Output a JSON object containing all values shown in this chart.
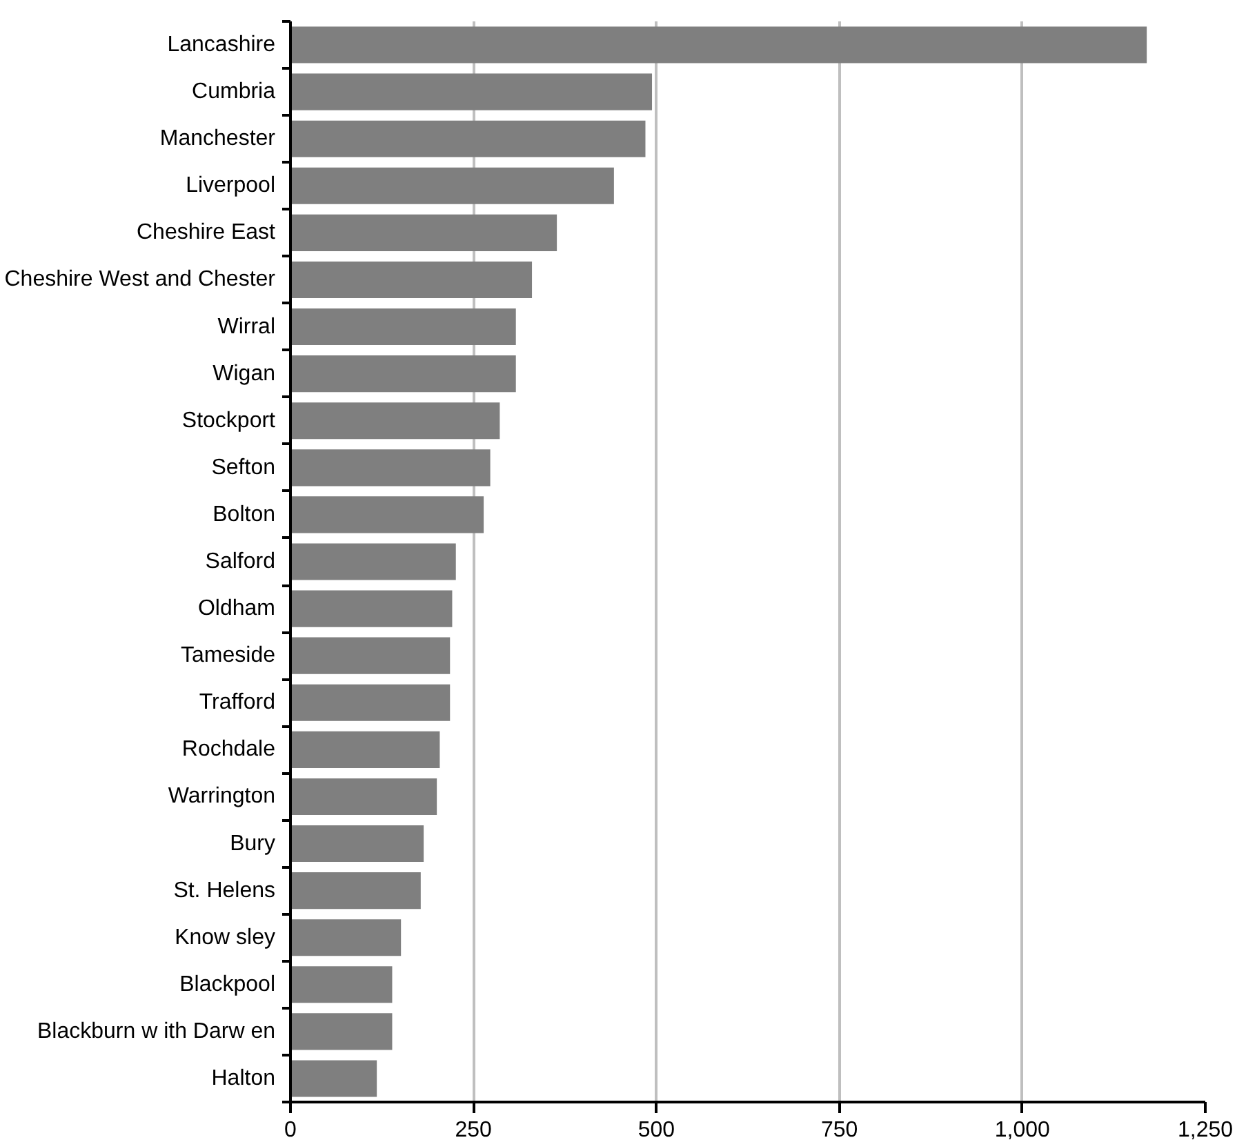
{
  "chart_data": {
    "type": "bar",
    "orientation": "horizontal",
    "categories": [
      "Lancashire",
      "Cumbria",
      "Manchester",
      "Liverpool",
      "Cheshire East",
      "Cheshire West and Chester",
      "Wirral",
      "Wigan",
      "Stockport",
      "Sefton",
      "Bolton",
      "Salford",
      "Oldham",
      "Tameside",
      "Trafford",
      "Rochdale",
      "Warrington",
      "Bury",
      "St. Helens",
      "Know sley",
      "Blackpool",
      "Blackburn w ith Darw en",
      "Halton"
    ],
    "values": [
      1170,
      494,
      485,
      442,
      364,
      330,
      308,
      308,
      286,
      273,
      264,
      226,
      221,
      218,
      218,
      204,
      200,
      182,
      178,
      151,
      139,
      139,
      118
    ],
    "color": "#7f7f7f",
    "xlim": [
      0,
      1250
    ],
    "xticks": [
      0,
      250,
      500,
      750,
      {
        "value": 1000,
        "label": "1,000"
      },
      {
        "value": 1250,
        "label": "1,250"
      }
    ],
    "grid": "x"
  }
}
